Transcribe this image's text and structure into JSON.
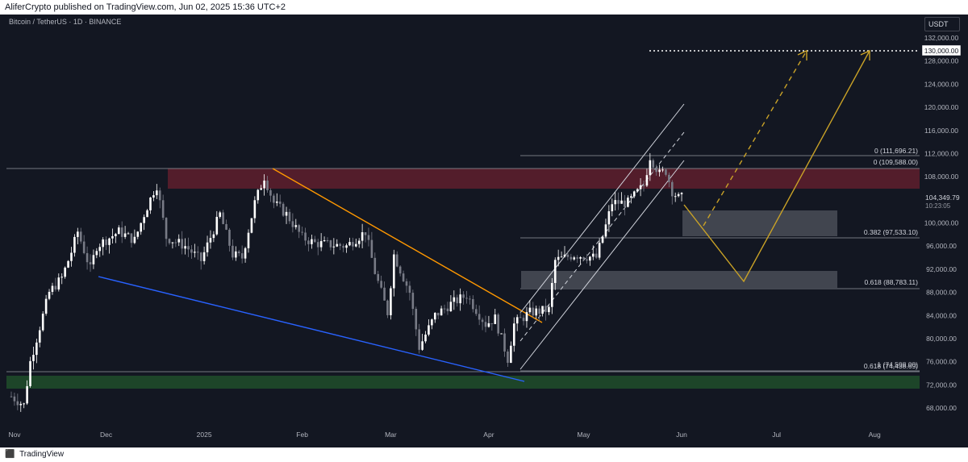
{
  "header": {
    "text": "AliferCrypto published on TradingView.com, Jun 02, 2025 15:36 UTC+2"
  },
  "chart": {
    "symbol": "Bitcoin / TetherUS · 1D · BINANCE",
    "currency": "USDT",
    "current_price": "104,349.79",
    "countdown": "10:23:05",
    "target_price": "130,000.00",
    "fib_labels": [
      "0 (111,696.21)",
      "0 (109,588.00)",
      "0.382 (97,533.10)",
      "0.618 (88,783.11)",
      "0.618 (74,438.69)",
      "1 (74,508.00)"
    ],
    "colors": {
      "background": "#131722",
      "up_candle": "#ffffff",
      "down_candle": "#787b86",
      "resistance_zone": "#5b1e2c",
      "support_zone": "#1f4a2a",
      "gray_zone": "#4a4d57",
      "orange_line": "#ff9800",
      "blue_line": "#2962ff",
      "projection": "#c9a227"
    }
  },
  "chart_data": {
    "type": "candlestick",
    "y_ticks": [
      "132,000.00",
      "128,000.00",
      "124,000.00",
      "120,000.00",
      "116,000.00",
      "112,000.00",
      "108,000.00",
      "100,000.00",
      "96,000.00",
      "92,000.00",
      "88,000.00",
      "84,000.00",
      "80,000.00",
      "76,000.00",
      "72,000.00",
      "68,000.00"
    ],
    "x_ticks": [
      "Nov",
      "Dec",
      "2025",
      "Feb",
      "Mar",
      "Apr",
      "May",
      "Jun",
      "Jul",
      "Aug"
    ],
    "close_path": [
      [
        "2024-11-01",
        70000
      ],
      [
        "2024-11-05",
        68500
      ],
      [
        "2024-11-07",
        76000
      ],
      [
        "2024-11-10",
        82000
      ],
      [
        "2024-11-13",
        88000
      ],
      [
        "2024-11-17",
        90500
      ],
      [
        "2024-11-20",
        95000
      ],
      [
        "2024-11-22",
        98500
      ],
      [
        "2024-11-26",
        92000
      ],
      [
        "2024-11-28",
        96000
      ],
      [
        "2024-12-05",
        98500
      ],
      [
        "2024-12-10",
        97000
      ],
      [
        "2024-12-13",
        101500
      ],
      [
        "2024-12-16",
        105500
      ],
      [
        "2024-12-17",
        106500
      ],
      [
        "2024-12-20",
        97500
      ],
      [
        "2024-12-26",
        96000
      ],
      [
        "2024-12-31",
        93500
      ],
      [
        "2025-01-06",
        101500
      ],
      [
        "2025-01-10",
        94500
      ],
      [
        "2025-01-13",
        94000
      ],
      [
        "2025-01-17",
        103500
      ],
      [
        "2025-01-20",
        108000
      ],
      [
        "2025-01-23",
        103500
      ],
      [
        "2025-01-27",
        101500
      ],
      [
        "2025-02-01",
        97500
      ],
      [
        "2025-02-05",
        96500
      ],
      [
        "2025-02-15",
        96000
      ],
      [
        "2025-02-21",
        98500
      ],
      [
        "2025-02-24",
        91500
      ],
      [
        "2025-02-28",
        84500
      ],
      [
        "2025-03-02",
        94500
      ],
      [
        "2025-03-07",
        88000
      ],
      [
        "2025-03-10",
        78500
      ],
      [
        "2025-03-15",
        84000
      ],
      [
        "2025-03-20",
        86000
      ],
      [
        "2025-03-25",
        87500
      ],
      [
        "2025-03-31",
        82500
      ],
      [
        "2025-04-03",
        83500
      ],
      [
        "2025-04-07",
        76500
      ],
      [
        "2025-04-09",
        82500
      ],
      [
        "2025-04-14",
        84500
      ],
      [
        "2025-04-20",
        85000
      ],
      [
        "2025-04-22",
        93500
      ],
      [
        "2025-04-28",
        94500
      ],
      [
        "2025-05-05",
        94000
      ],
      [
        "2025-05-08",
        99500
      ],
      [
        "2025-05-10",
        103500
      ],
      [
        "2025-05-15",
        103500
      ],
      [
        "2025-05-20",
        106500
      ],
      [
        "2025-05-22",
        111500
      ],
      [
        "2025-05-25",
        108500
      ],
      [
        "2025-05-27",
        109000
      ],
      [
        "2025-05-29",
        105500
      ],
      [
        "2025-05-31",
        104300
      ],
      [
        "2025-06-01",
        104349.79
      ]
    ]
  }
}
